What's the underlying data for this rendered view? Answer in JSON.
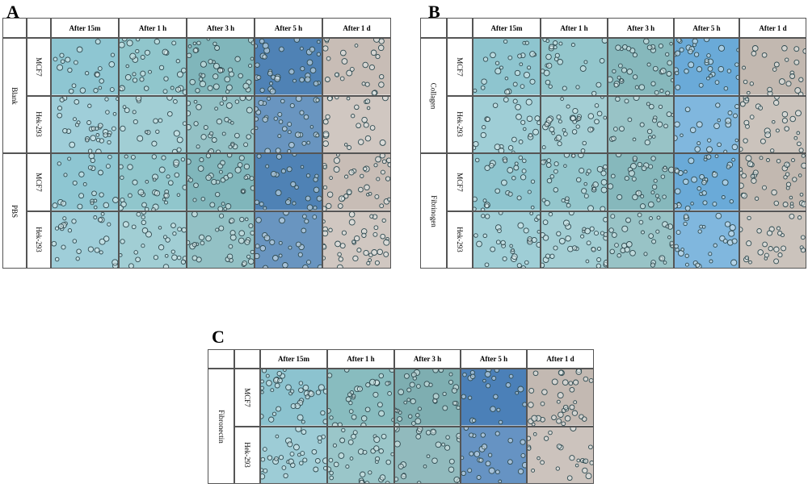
{
  "panels": [
    {
      "label": "A",
      "columns": [
        "After 15m",
        "After 1 h",
        "After 3 h",
        "After 5 h",
        "After 1 d"
      ],
      "groups": [
        {
          "name": "Blank",
          "rows": [
            "MCF7",
            "Hek-293"
          ]
        },
        {
          "name": "PBS",
          "rows": [
            "MCF7",
            "Hek-293"
          ]
        }
      ]
    },
    {
      "label": "B",
      "columns": [
        "After 15m",
        "After 1 h",
        "After 3 h",
        "After 5 h",
        "After 1 d"
      ],
      "groups": [
        {
          "name": "Collagen",
          "rows": [
            "MCF7",
            "Hek-293"
          ]
        },
        {
          "name": "Fibrinogen",
          "rows": [
            "MCF7",
            "Hek-293"
          ]
        }
      ]
    },
    {
      "label": "C",
      "columns": [
        "After 15m",
        "After 1 h",
        "After 3 h",
        "After 5 h",
        "After 1 d"
      ],
      "groups": [
        {
          "name": "Fibronectin",
          "rows": [
            "MCF7",
            "Hek-293"
          ]
        }
      ]
    }
  ]
}
